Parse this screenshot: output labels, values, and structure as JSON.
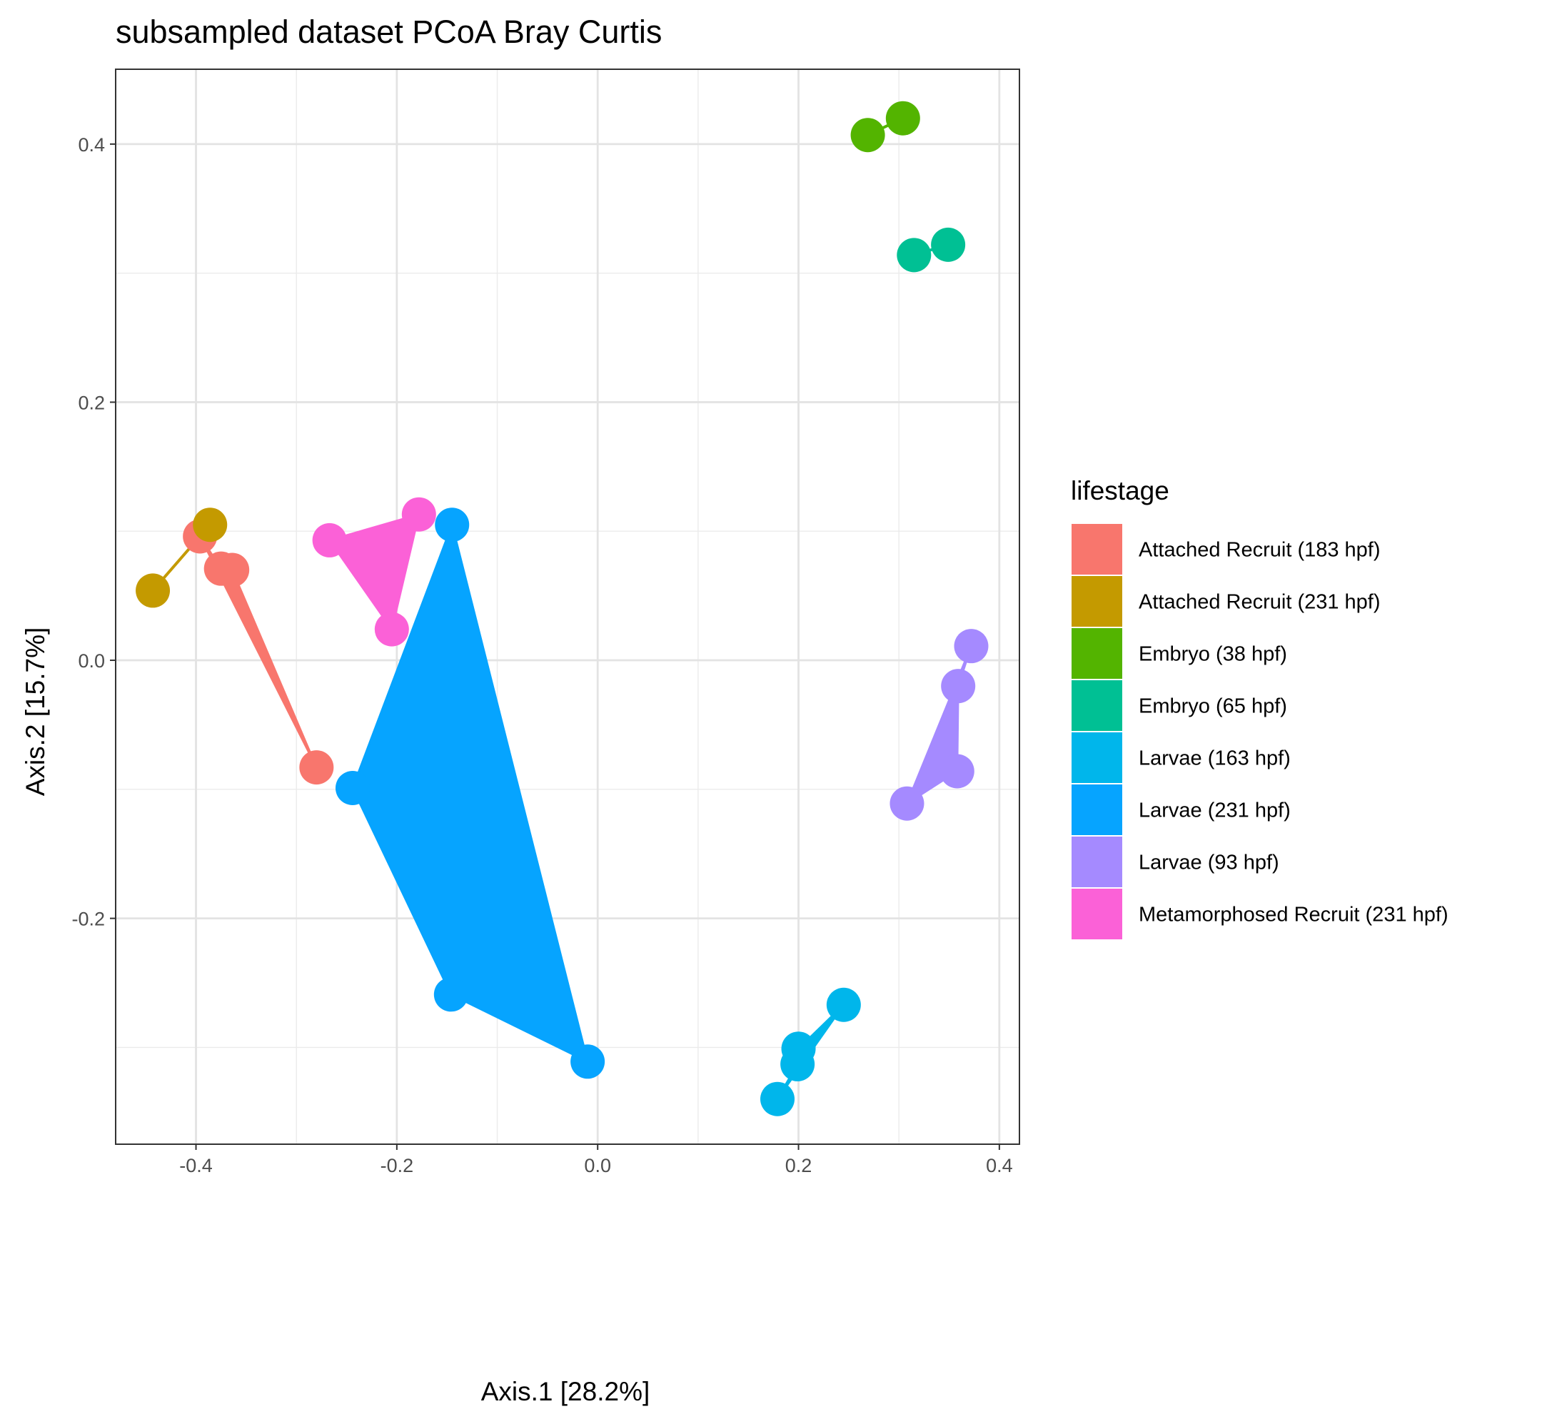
{
  "chart_data": {
    "type": "scatter",
    "title": "subsampled dataset PCoA Bray Curtis",
    "xlabel": "Axis.1   [28.2%]",
    "ylabel": "Axis.2   [15.7%]",
    "xlim": [
      -0.48,
      0.42
    ],
    "ylim": [
      -0.375,
      0.458
    ],
    "x_ticks": [
      -0.4,
      -0.2,
      0.0,
      0.2,
      0.4
    ],
    "x_tick_labels": [
      "-0.4",
      "-0.2",
      "0.0",
      "0.2",
      "0.4"
    ],
    "y_ticks": [
      -0.2,
      0.0,
      0.2,
      0.4
    ],
    "y_tick_labels": [
      "-0.2",
      "0.0",
      "0.2",
      "0.4"
    ],
    "grid": true,
    "legend": {
      "title": "lifestage",
      "placement": "right"
    },
    "series": [
      {
        "name": "Attached Recruit (183 hpf)",
        "color": "#F8766D",
        "points": [
          [
            -0.396,
            0.096
          ],
          [
            -0.375,
            0.071
          ],
          [
            -0.364,
            0.07
          ],
          [
            -0.28,
            -0.083
          ]
        ]
      },
      {
        "name": "Attached Recruit (231 hpf)",
        "color": "#C49A00",
        "points": [
          [
            -0.386,
            0.105
          ],
          [
            -0.443,
            0.054
          ]
        ]
      },
      {
        "name": "Embryo (38 hpf)",
        "color": "#53B400",
        "points": [
          [
            0.269,
            0.407
          ],
          [
            0.304,
            0.42
          ]
        ]
      },
      {
        "name": "Embryo (65 hpf)",
        "color": "#00C094",
        "points": [
          [
            0.315,
            0.314
          ],
          [
            0.349,
            0.322
          ]
        ]
      },
      {
        "name": "Larvae (163 hpf)",
        "color": "#00B6EB",
        "points": [
          [
            0.179,
            -0.34
          ],
          [
            0.199,
            -0.313
          ],
          [
            0.2,
            -0.301
          ],
          [
            0.245,
            -0.267
          ]
        ]
      },
      {
        "name": "Larvae (231 hpf)",
        "color": "#06A4FF",
        "points": [
          [
            -0.145,
            0.105
          ],
          [
            -0.244,
            -0.099
          ],
          [
            -0.146,
            -0.259
          ],
          [
            -0.01,
            -0.311
          ]
        ]
      },
      {
        "name": "Larvae (93 hpf)",
        "color": "#A58AFF",
        "points": [
          [
            0.372,
            0.011
          ],
          [
            0.359,
            -0.02
          ],
          [
            0.358,
            -0.086
          ],
          [
            0.308,
            -0.111
          ]
        ]
      },
      {
        "name": "Metamorphosed Recruit (231 hpf)",
        "color": "#FB61D7",
        "points": [
          [
            -0.267,
            0.093
          ],
          [
            -0.178,
            0.113
          ],
          [
            -0.205,
            0.024
          ]
        ]
      }
    ]
  }
}
